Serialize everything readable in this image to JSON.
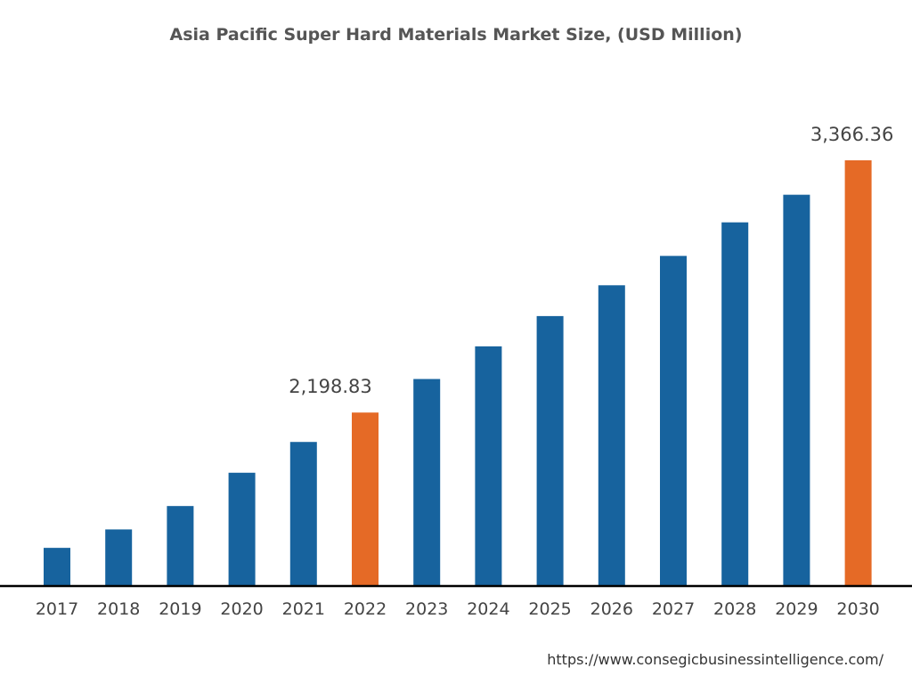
{
  "chart_data": {
    "type": "bar",
    "title": "Asia Pacific Super Hard Materials Market Size, (USD Million)",
    "xlabel": "",
    "ylabel": "",
    "categories": [
      "2017",
      "2018",
      "2019",
      "2020",
      "2021",
      "2022",
      "2023",
      "2024",
      "2025",
      "2026",
      "2027",
      "2028",
      "2029",
      "2030"
    ],
    "values": [
      1572.6,
      1657.9,
      1766.2,
      1920.3,
      2062.8,
      2198.83,
      2354.1,
      2505.3,
      2645.4,
      2788.0,
      2923.9,
      3079.2,
      3207.0,
      3366.36
    ],
    "data_labels": {
      "2022": "2,198.83",
      "2030": "3,366.36"
    },
    "highlighted": [
      "2022",
      "2030"
    ],
    "ylim": [
      1400,
      3366.36
    ],
    "grid": false,
    "y_axis_visible": false,
    "colors": {
      "bar": "#17639e",
      "highlight": "#e56a26",
      "axis": "#000000"
    }
  },
  "source": "https://www.consegicbusinessintelligence.com/"
}
